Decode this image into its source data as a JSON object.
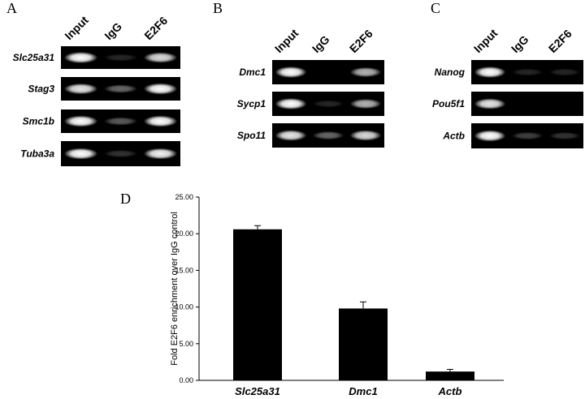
{
  "panels": [
    {
      "letter": "A",
      "lanes": [
        "Input",
        "IgG",
        "E2F6"
      ],
      "genes": [
        "Slc25a31",
        "Stag3",
        "Smc1b",
        "Tuba3a"
      ]
    },
    {
      "letter": "B",
      "lanes": [
        "Input",
        "IgG",
        "E2F6"
      ],
      "genes": [
        "Dmc1",
        "Sycp1",
        "Spo11"
      ]
    },
    {
      "letter": "C",
      "lanes": [
        "Input",
        "IgG",
        "E2F6"
      ],
      "genes": [
        "Nanog",
        "Pou5f1",
        "Actb"
      ]
    }
  ],
  "chart_data": {
    "type": "bar",
    "letter": "D",
    "y_label": "Fold E2F6 enrichment over IgG control",
    "categories": [
      "Slc25a31",
      "Dmc1",
      "Actb"
    ],
    "values": [
      20.6,
      9.8,
      1.2
    ],
    "errors": [
      0.5,
      0.9,
      0.3
    ],
    "color": "#000000",
    "ylim": [
      0,
      25
    ],
    "yticks": [
      {
        "value": 0,
        "label": "0.00"
      },
      {
        "value": 5,
        "label": "5.00"
      },
      {
        "value": 10,
        "label": "10.00"
      },
      {
        "value": 15,
        "label": "15.00"
      },
      {
        "value": 20,
        "label": "20.00"
      },
      {
        "value": 25,
        "label": "25.00"
      }
    ]
  }
}
